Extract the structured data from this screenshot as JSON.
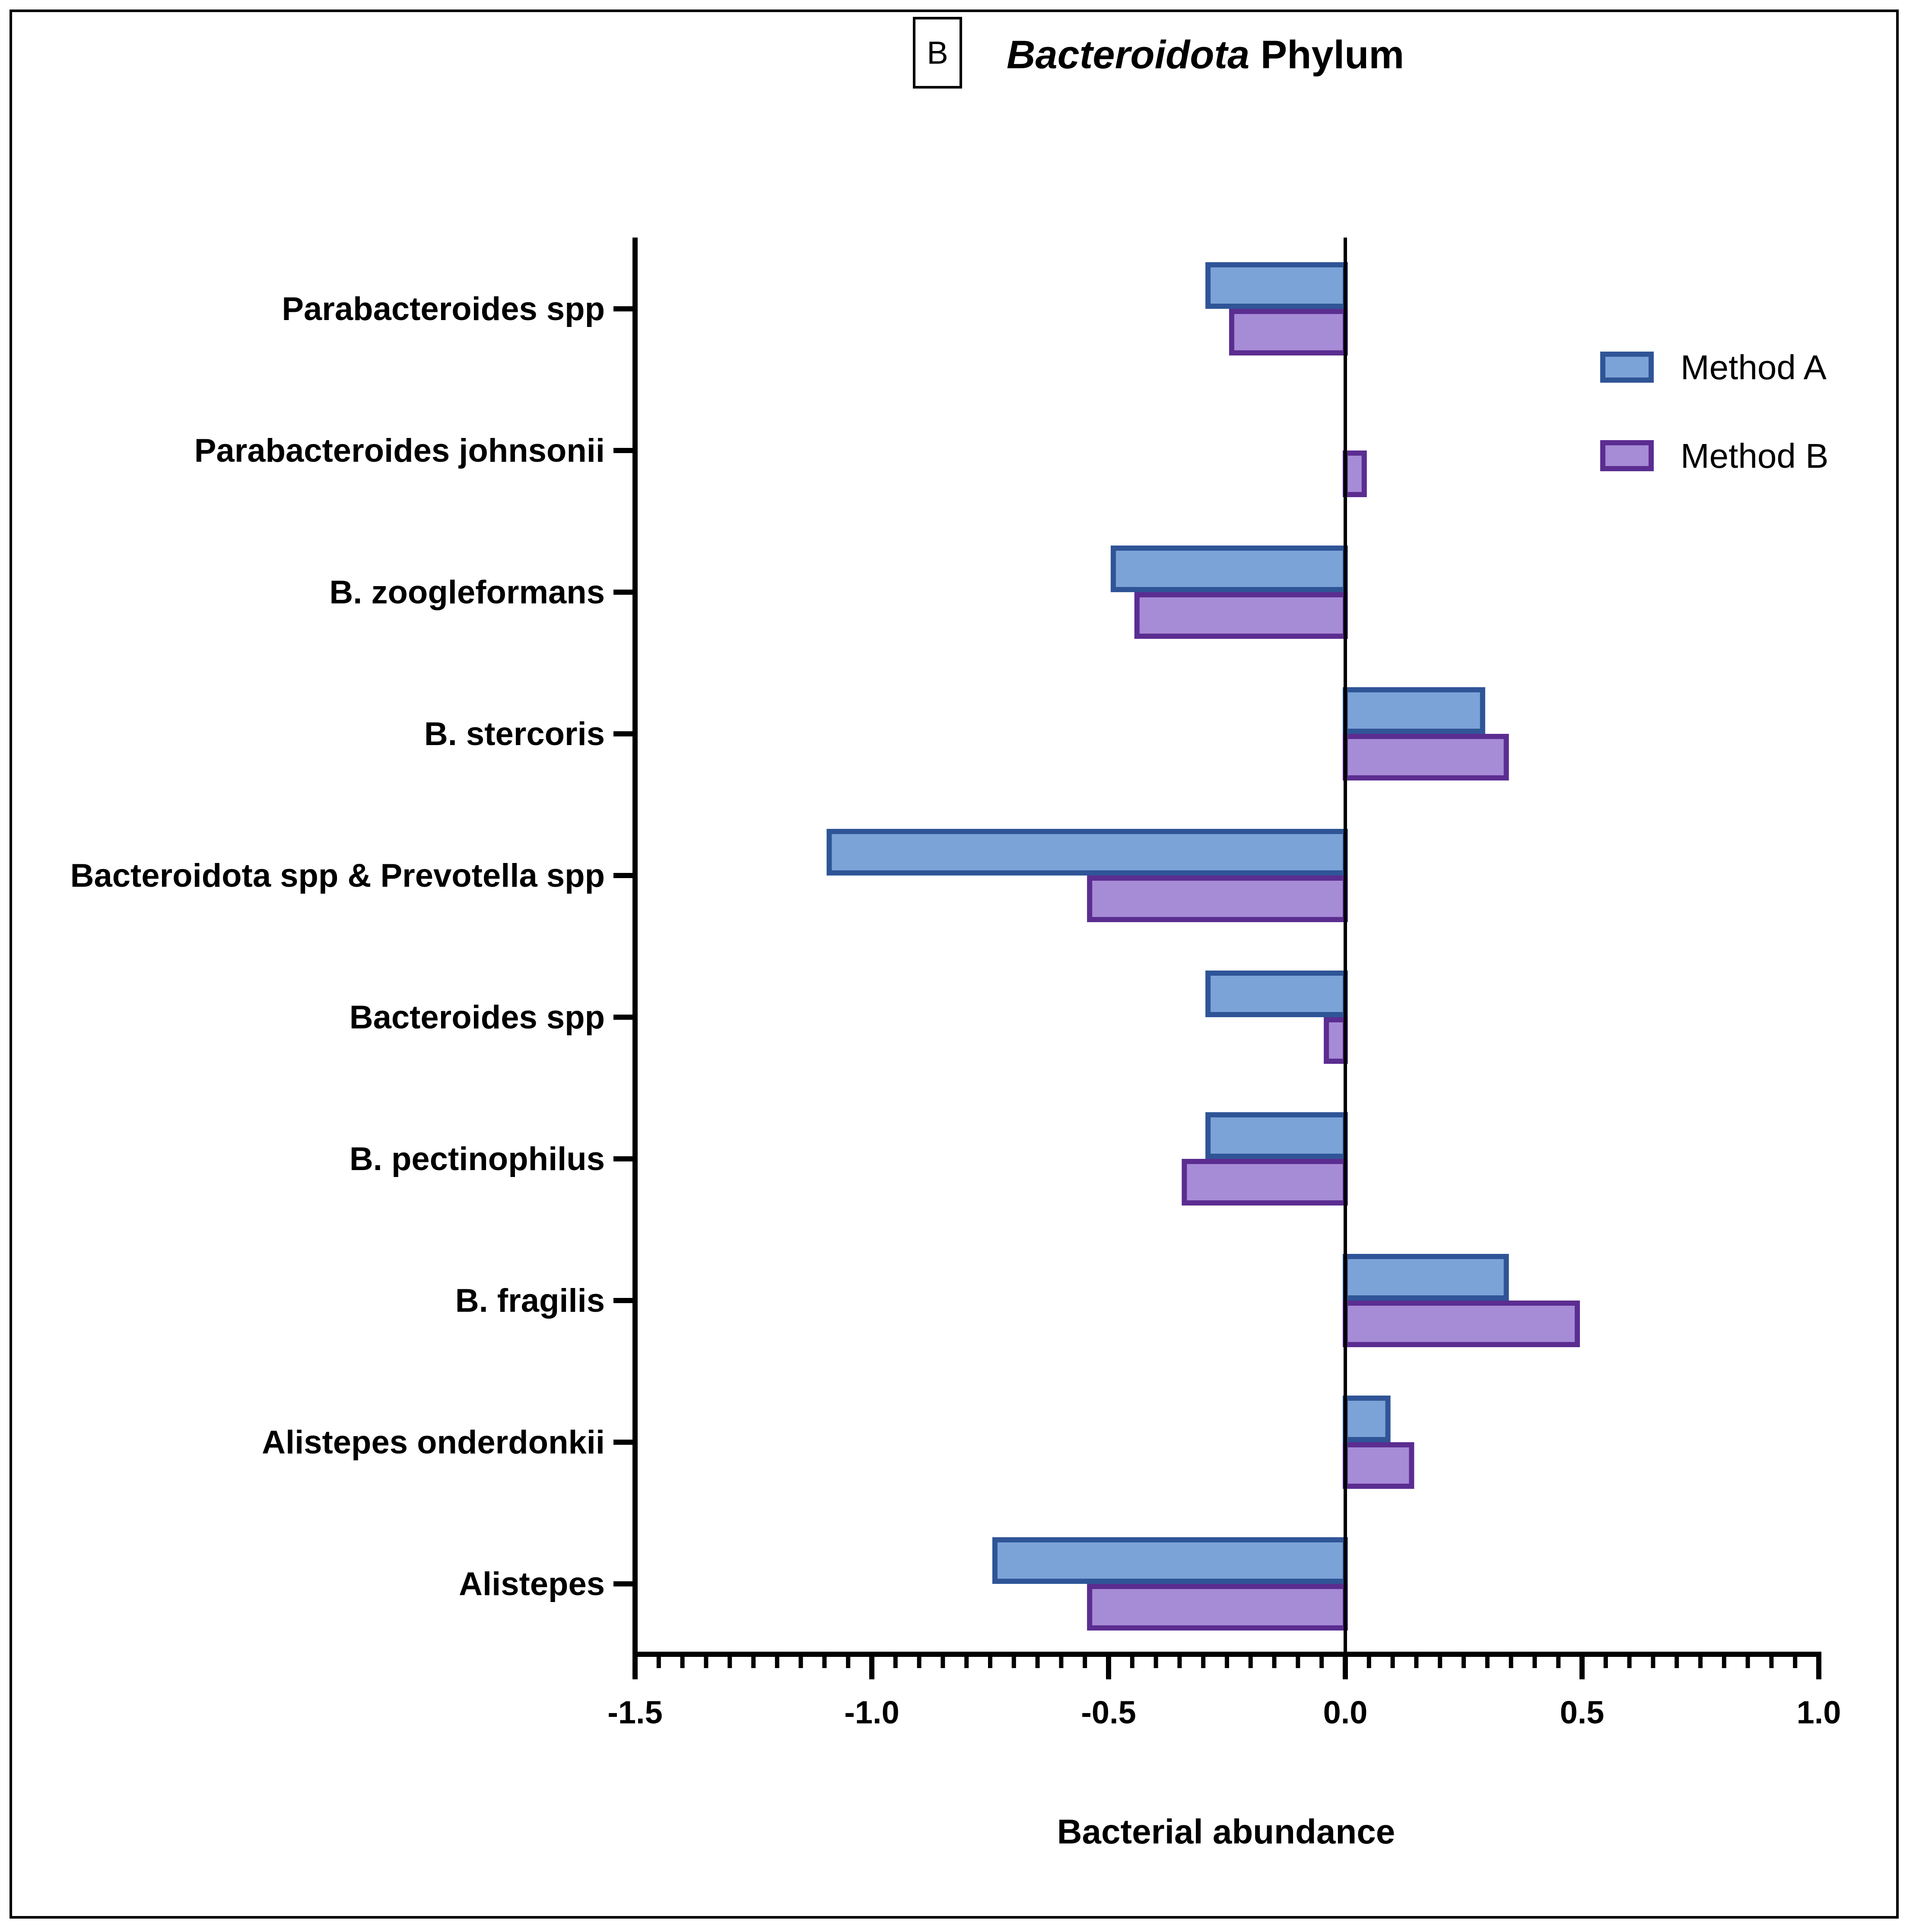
{
  "chart_data": {
    "type": "bar",
    "orientation": "horizontal",
    "panel_label": "B",
    "title_italic": "Bacteroidota",
    "title_rest": " Phylum",
    "xlabel": "Bacterial abundance",
    "ylabel": "",
    "xlim": [
      -1.5,
      1.0
    ],
    "x_ticks": [
      -1.5,
      -1.0,
      -0.5,
      0.0,
      0.5,
      1.0
    ],
    "x_tick_labels": [
      "-1.5",
      "-1.0",
      "-0.5",
      "0.0",
      "0.5",
      "1.0"
    ],
    "x_minor_step": 0.05,
    "grid": false,
    "legend_position": "top-right",
    "categories": [
      "Parabacteroides spp",
      "Parabacteroides johnsonii",
      "B. zoogleformans",
      "B. stercoris",
      "Bacteroidota spp & Prevotella spp",
      "Bacteroides spp",
      "B. pectinophilus",
      "B. fragilis",
      "Alistepes onderdonkii",
      "Alistepes"
    ],
    "series": [
      {
        "name": "Method A",
        "fill": "#7ba3d7",
        "stroke": "#2f5597",
        "values": [
          -0.29,
          0.0,
          -0.49,
          0.29,
          -1.09,
          -0.29,
          -0.29,
          0.34,
          0.09,
          -0.74
        ]
      },
      {
        "name": "Method B",
        "fill": "#a68bd6",
        "stroke": "#5b2d91",
        "values": [
          -0.24,
          0.04,
          -0.44,
          0.34,
          -0.54,
          -0.04,
          -0.34,
          0.49,
          0.14,
          -0.54
        ]
      }
    ]
  }
}
